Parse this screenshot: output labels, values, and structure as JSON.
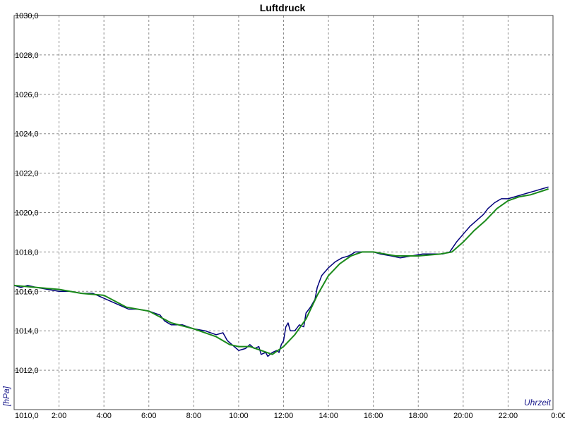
{
  "chart_data": {
    "type": "line",
    "title": "Luftdruck",
    "xlabel": "Uhrzeit",
    "ylabel": "[hPa]",
    "x_unit": "hours",
    "xlim": [
      0,
      24
    ],
    "ylim": [
      1010,
      1030
    ],
    "grid": true,
    "x_ticks": [
      {
        "v": 2,
        "label": "2:00"
      },
      {
        "v": 4,
        "label": "4:00"
      },
      {
        "v": 6,
        "label": "6:00"
      },
      {
        "v": 8,
        "label": "8:00"
      },
      {
        "v": 10,
        "label": "10:00"
      },
      {
        "v": 12,
        "label": "12:00"
      },
      {
        "v": 14,
        "label": "14:00"
      },
      {
        "v": 16,
        "label": "16:00"
      },
      {
        "v": 18,
        "label": "18:00"
      },
      {
        "v": 20,
        "label": "20:00"
      },
      {
        "v": 22,
        "label": "22:00"
      },
      {
        "v": 24,
        "label": "0:00"
      }
    ],
    "y_ticks": [
      {
        "v": 1010,
        "label": "1010,0"
      },
      {
        "v": 1012,
        "label": "1012,0"
      },
      {
        "v": 1014,
        "label": "1014,0"
      },
      {
        "v": 1016,
        "label": "1016,0"
      },
      {
        "v": 1018,
        "label": "1018,0"
      },
      {
        "v": 1020,
        "label": "1020,0"
      },
      {
        "v": 1022,
        "label": "1022,0"
      },
      {
        "v": 1024,
        "label": "1024,0"
      },
      {
        "v": 1026,
        "label": "1026,0"
      },
      {
        "v": 1028,
        "label": "1028,0"
      },
      {
        "v": 1030,
        "label": "1030,0"
      }
    ],
    "series": [
      {
        "color": "#00007a",
        "points": [
          [
            0.0,
            1016.3
          ],
          [
            0.3,
            1016.2
          ],
          [
            0.6,
            1016.3
          ],
          [
            1.0,
            1016.2
          ],
          [
            1.5,
            1016.1
          ],
          [
            2.0,
            1016.0
          ],
          [
            2.5,
            1016.0
          ],
          [
            3.0,
            1015.9
          ],
          [
            3.5,
            1015.9
          ],
          [
            3.9,
            1015.7
          ],
          [
            4.3,
            1015.5
          ],
          [
            4.7,
            1015.3
          ],
          [
            5.1,
            1015.1
          ],
          [
            5.5,
            1015.1
          ],
          [
            6.0,
            1015.0
          ],
          [
            6.5,
            1014.8
          ],
          [
            6.7,
            1014.5
          ],
          [
            7.0,
            1014.3
          ],
          [
            7.5,
            1014.3
          ],
          [
            8.0,
            1014.1
          ],
          [
            8.5,
            1014.0
          ],
          [
            9.0,
            1013.8
          ],
          [
            9.3,
            1013.9
          ],
          [
            9.5,
            1013.5
          ],
          [
            9.8,
            1013.2
          ],
          [
            10.0,
            1013.0
          ],
          [
            10.3,
            1013.1
          ],
          [
            10.5,
            1013.3
          ],
          [
            10.7,
            1013.1
          ],
          [
            10.9,
            1013.2
          ],
          [
            11.0,
            1012.8
          ],
          [
            11.2,
            1012.9
          ],
          [
            11.3,
            1012.7
          ],
          [
            11.5,
            1012.9
          ],
          [
            11.7,
            1013.0
          ],
          [
            11.8,
            1012.9
          ],
          [
            11.9,
            1013.3
          ],
          [
            12.0,
            1013.5
          ],
          [
            12.1,
            1014.2
          ],
          [
            12.2,
            1014.4
          ],
          [
            12.3,
            1014.0
          ],
          [
            12.5,
            1014.0
          ],
          [
            12.7,
            1014.3
          ],
          [
            12.9,
            1014.2
          ],
          [
            13.0,
            1014.9
          ],
          [
            13.2,
            1015.2
          ],
          [
            13.4,
            1015.6
          ],
          [
            13.5,
            1016.2
          ],
          [
            13.7,
            1016.8
          ],
          [
            14.0,
            1017.2
          ],
          [
            14.3,
            1017.5
          ],
          [
            14.6,
            1017.7
          ],
          [
            14.9,
            1017.8
          ],
          [
            15.2,
            1018.0
          ],
          [
            15.5,
            1018.0
          ],
          [
            16.0,
            1018.0
          ],
          [
            16.3,
            1017.9
          ],
          [
            16.8,
            1017.8
          ],
          [
            17.2,
            1017.7
          ],
          [
            17.7,
            1017.8
          ],
          [
            18.2,
            1017.9
          ],
          [
            18.7,
            1017.9
          ],
          [
            19.1,
            1017.9
          ],
          [
            19.4,
            1018.0
          ],
          [
            19.7,
            1018.5
          ],
          [
            20.0,
            1018.9
          ],
          [
            20.3,
            1019.3
          ],
          [
            20.6,
            1019.6
          ],
          [
            20.9,
            1019.9
          ],
          [
            21.1,
            1020.2
          ],
          [
            21.4,
            1020.5
          ],
          [
            21.7,
            1020.7
          ],
          [
            22.0,
            1020.7
          ],
          [
            22.3,
            1020.8
          ],
          [
            22.6,
            1020.9
          ],
          [
            22.9,
            1021.0
          ],
          [
            23.2,
            1021.1
          ],
          [
            23.5,
            1021.2
          ],
          [
            23.8,
            1021.3
          ]
        ]
      },
      {
        "color": "#1a8a1a",
        "points": [
          [
            0.0,
            1016.3
          ],
          [
            1.0,
            1016.2
          ],
          [
            2.0,
            1016.1
          ],
          [
            3.0,
            1015.9
          ],
          [
            4.0,
            1015.8
          ],
          [
            5.0,
            1015.2
          ],
          [
            6.0,
            1015.0
          ],
          [
            6.5,
            1014.7
          ],
          [
            7.0,
            1014.4
          ],
          [
            8.0,
            1014.1
          ],
          [
            9.0,
            1013.7
          ],
          [
            9.6,
            1013.3
          ],
          [
            10.0,
            1013.2
          ],
          [
            10.5,
            1013.2
          ],
          [
            11.0,
            1013.0
          ],
          [
            11.5,
            1012.8
          ],
          [
            12.0,
            1013.2
          ],
          [
            12.5,
            1013.8
          ],
          [
            13.0,
            1014.6
          ],
          [
            13.5,
            1015.8
          ],
          [
            14.0,
            1016.8
          ],
          [
            14.5,
            1017.4
          ],
          [
            15.0,
            1017.8
          ],
          [
            15.5,
            1018.0
          ],
          [
            16.0,
            1018.0
          ],
          [
            16.5,
            1017.9
          ],
          [
            17.0,
            1017.8
          ],
          [
            18.0,
            1017.8
          ],
          [
            19.0,
            1017.9
          ],
          [
            19.5,
            1018.0
          ],
          [
            20.0,
            1018.5
          ],
          [
            20.5,
            1019.1
          ],
          [
            21.0,
            1019.6
          ],
          [
            21.5,
            1020.2
          ],
          [
            22.0,
            1020.6
          ],
          [
            22.5,
            1020.8
          ],
          [
            23.0,
            1020.9
          ],
          [
            23.8,
            1021.2
          ]
        ]
      }
    ]
  }
}
